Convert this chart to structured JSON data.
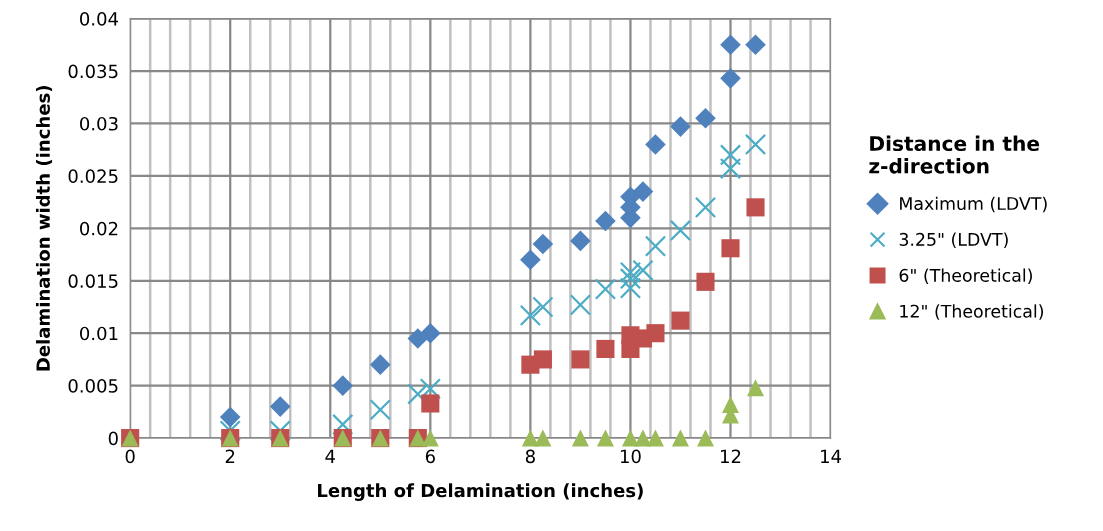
{
  "chart_data": {
    "type": "scatter",
    "xlabel": "Length of Delamination (inches)",
    "ylabel": "Delamination width (inches)",
    "legend_title": "Distance in the\nz-direction",
    "legend": "right",
    "grid": true,
    "xlim": [
      0,
      14
    ],
    "ylim": [
      0,
      0.04
    ],
    "xticks": [
      0,
      {
        "value": 0.4,
        "label": null
      },
      {
        "value": 0.8,
        "label": null
      },
      {
        "value": 1.2,
        "label": null
      },
      {
        "value": 1.6,
        "label": null
      },
      2,
      {
        "value": 2.4,
        "label": null
      },
      {
        "value": 2.8,
        "label": null
      },
      {
        "value": 3.2,
        "label": null
      },
      {
        "value": 3.6,
        "label": null
      },
      4,
      {
        "value": 4.4,
        "label": null
      },
      {
        "value": 4.8,
        "label": null
      },
      {
        "value": 5.2,
        "label": null
      },
      {
        "value": 5.6,
        "label": null
      },
      6,
      {
        "value": 6.4,
        "label": null
      },
      {
        "value": 6.8,
        "label": null
      },
      {
        "value": 7.2,
        "label": null
      },
      {
        "value": 7.6,
        "label": null
      },
      8,
      {
        "value": 8.4,
        "label": null
      },
      {
        "value": 8.8,
        "label": null
      },
      {
        "value": 9.2,
        "label": null
      },
      {
        "value": 9.6,
        "label": null
      },
      10,
      {
        "value": 10.4,
        "label": null
      },
      {
        "value": 10.8,
        "label": null
      },
      {
        "value": 11.2,
        "label": null
      },
      {
        "value": 11.6,
        "label": null
      },
      12,
      {
        "value": 12.4,
        "label": null
      },
      {
        "value": 12.8,
        "label": null
      },
      {
        "value": 13.2,
        "label": null
      },
      {
        "value": 13.6,
        "label": null
      },
      14
    ],
    "yticks": [
      0,
      0.005,
      0.01,
      0.015,
      0.02,
      0.025,
      0.03,
      0.035,
      0.04
    ],
    "series": [
      {
        "name": "Maximum (LDVT)",
        "color": "#4f81bd",
        "marker": "diamond",
        "x": [
          2,
          3,
          4.25,
          5,
          5.75,
          6,
          8,
          8.25,
          9,
          9.5,
          10,
          10,
          10,
          10.25,
          10.5,
          11,
          11.5,
          12,
          12,
          12.5
        ],
        "values": [
          0.002,
          0.003,
          0.005,
          0.007,
          0.0095,
          0.01,
          0.017,
          0.0185,
          0.0188,
          0.0207,
          0.021,
          0.022,
          0.023,
          0.0235,
          0.028,
          0.0297,
          0.0305,
          0.0343,
          0.0375,
          0.0375
        ]
      },
      {
        "name": "3.25\" (LDVT)",
        "color": "#4bacc6",
        "marker": "cross",
        "x": [
          2,
          3,
          4.25,
          5,
          5.75,
          6,
          8,
          8.25,
          9,
          9.5,
          10,
          10,
          10,
          10.25,
          10.5,
          11,
          11.5,
          12,
          12,
          12.5
        ],
        "values": [
          0.0007,
          0.0007,
          0.0013,
          0.0027,
          0.0042,
          0.0047,
          0.0117,
          0.0125,
          0.0127,
          0.0142,
          0.0143,
          0.0152,
          0.0158,
          0.016,
          0.0183,
          0.0198,
          0.022,
          0.0257,
          0.027,
          0.028
        ]
      },
      {
        "name": "6\" (Theoretical)",
        "color": "#c0504d",
        "marker": "square",
        "x": [
          0,
          2,
          3,
          4.25,
          5,
          5.75,
          6,
          8,
          8.25,
          9,
          9.5,
          10,
          10,
          10.25,
          10.5,
          11,
          11.5,
          12,
          12.5
        ],
        "values": [
          0,
          0,
          0,
          0,
          0,
          0,
          0.0033,
          0.007,
          0.0075,
          0.0075,
          0.0085,
          0.0085,
          0.0098,
          0.0095,
          0.01,
          0.0112,
          0.0149,
          0.0181,
          0.022
        ]
      },
      {
        "name": "12\" (Theoretical)",
        "color": "#9bbb59",
        "marker": "triangle",
        "x": [
          0,
          2,
          3,
          4.25,
          5,
          5.75,
          6,
          8,
          8.25,
          9,
          9.5,
          10,
          10.25,
          10.5,
          11,
          11.5,
          12,
          12,
          12.5
        ],
        "values": [
          0,
          0,
          0,
          0,
          0,
          0,
          0,
          0,
          0,
          0,
          0,
          0,
          0,
          0,
          0,
          0,
          0.0022,
          0.0032,
          0.0048
        ]
      }
    ]
  }
}
